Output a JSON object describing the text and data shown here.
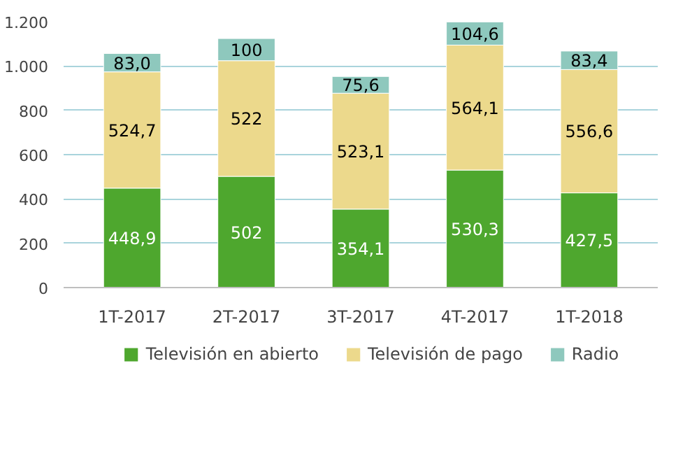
{
  "chart_data": {
    "type": "bar",
    "stacked": true,
    "categories": [
      "1T-2017",
      "2T-2017",
      "3T-2017",
      "4T-2017",
      "1T-2018"
    ],
    "series": [
      {
        "name": "Televisión en abierto",
        "color": "#4ea72e",
        "values": [
          448.9,
          502,
          354.1,
          530.3,
          427.5
        ],
        "value_labels": [
          "448,9",
          "502",
          "354,1",
          "530,3",
          "427,5"
        ]
      },
      {
        "name": "Televisión de pago",
        "color": "#ecd98c",
        "values": [
          524.7,
          522,
          523.1,
          564.1,
          556.6
        ],
        "value_labels": [
          "524,7",
          "522",
          "523,1",
          "564,1",
          "556,6"
        ]
      },
      {
        "name": "Radio",
        "color": "#8ec8bd",
        "values": [
          83.0,
          100,
          75.6,
          104.6,
          83.4
        ],
        "value_labels": [
          "83,0",
          "100",
          "75,6",
          "104,6",
          "83,4"
        ]
      }
    ],
    "ylim": [
      0,
      1200
    ],
    "yticks": [
      0,
      200,
      400,
      600,
      800,
      {
        "value": 1000,
        "label": "1.000"
      },
      {
        "value": 1200,
        "label": "1.200"
      }
    ],
    "grid": "y",
    "legend": "bottom"
  }
}
